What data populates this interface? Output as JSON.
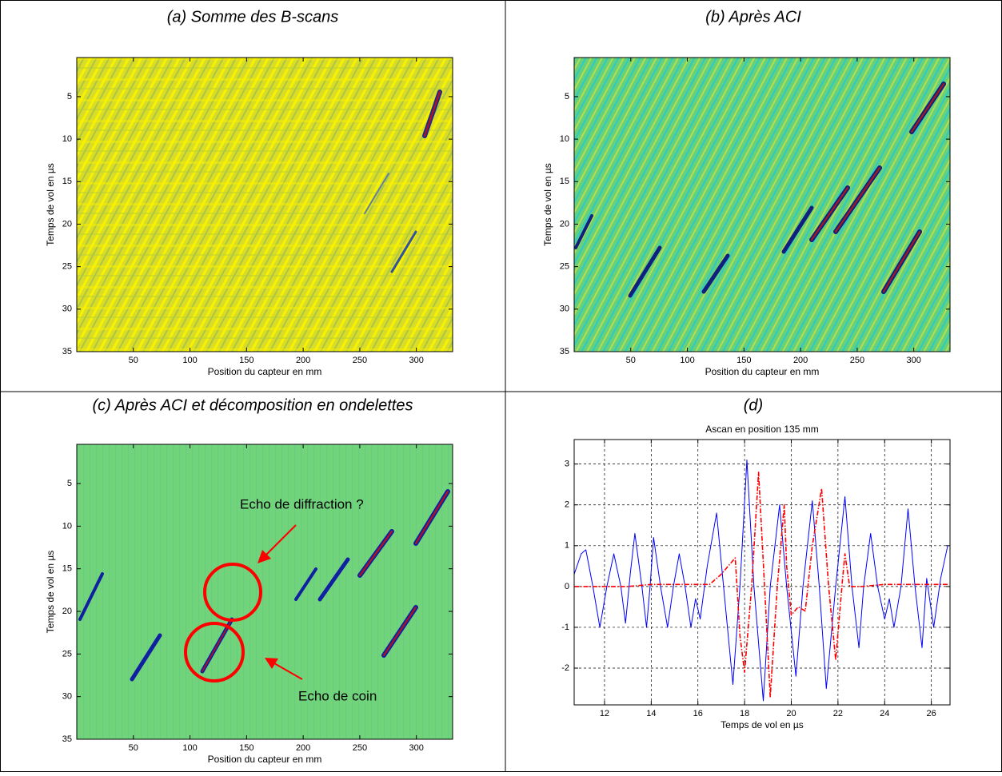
{
  "chart_data": [
    {
      "type": "image",
      "caption": "(a) Somme des B-scans",
      "xlabel": "Position du capteur en mm",
      "ylabel": "Temps de vol en µs",
      "xlim": [
        0,
        332
      ],
      "ylim": [
        0.4,
        35
      ],
      "y_reversed": true,
      "xticks": [
        50,
        100,
        150,
        200,
        250,
        300
      ],
      "yticks": [
        5,
        10,
        15,
        20,
        25,
        30,
        35
      ]
    },
    {
      "type": "image",
      "caption": "(b) Après ACI",
      "xlabel": "Position du capteur en mm",
      "ylabel": "Temps de vol en µs",
      "xlim": [
        0,
        332
      ],
      "ylim": [
        0.4,
        35
      ],
      "y_reversed": true,
      "xticks": [
        50,
        100,
        150,
        200,
        250,
        300
      ],
      "yticks": [
        5,
        10,
        15,
        20,
        25,
        30,
        35
      ]
    },
    {
      "type": "image",
      "caption": "(c) Après ACI et décomposition en ondelettes",
      "xlabel": "Position du capteur en mm",
      "ylabel": "Temps de vol en µs",
      "xlim": [
        0,
        332
      ],
      "ylim": [
        0.4,
        35
      ],
      "y_reversed": true,
      "xticks": [
        50,
        100,
        150,
        200,
        250,
        300
      ],
      "yticks": [
        5,
        10,
        15,
        20,
        25,
        30,
        35
      ],
      "annotations": [
        "Echo de diffraction ?",
        "Echo de coin"
      ]
    },
    {
      "type": "line",
      "caption": "(d)",
      "title": "Ascan en position 135 mm",
      "xlabel": "Temps de vol en µs",
      "xlim": [
        10.7,
        26.8
      ],
      "ylim": [
        -2.9,
        3.6
      ],
      "xticks": [
        12,
        14,
        16,
        18,
        20,
        22,
        24,
        26
      ],
      "yticks": [
        -2,
        -1,
        0,
        1,
        2,
        3
      ],
      "grid": true,
      "series": [
        {
          "color": "#0000ff",
          "dash": "solid",
          "x": [
            10.7,
            11.0,
            11.2,
            11.5,
            11.8,
            12.1,
            12.4,
            12.7,
            12.9,
            13.1,
            13.3,
            13.6,
            13.8,
            13.95,
            14.1,
            14.4,
            14.7,
            14.95,
            15.2,
            15.45,
            15.7,
            15.9,
            16.1,
            16.4,
            16.8,
            17.1,
            17.5,
            17.8,
            18.1,
            18.4,
            18.8,
            19.1,
            19.5,
            19.8,
            20.2,
            20.5,
            20.9,
            21.2,
            21.5,
            21.9,
            22.3,
            22.6,
            22.9,
            23.1,
            23.4,
            23.7,
            24.0,
            24.2,
            24.4,
            24.7,
            25.0,
            25.3,
            25.6,
            25.8,
            26.1,
            26.4,
            26.7
          ],
          "values": [
            0.3,
            0.8,
            0.9,
            0.0,
            -1.0,
            0.0,
            0.8,
            0.0,
            -0.9,
            0.3,
            1.3,
            0.0,
            -1.0,
            0.0,
            1.2,
            0.0,
            -1.0,
            0.0,
            0.8,
            0.0,
            -1.0,
            -0.3,
            -0.8,
            0.5,
            1.8,
            0.0,
            -2.4,
            0.0,
            3.1,
            0.0,
            -2.8,
            0.0,
            2.0,
            0.0,
            -2.2,
            0.0,
            2.1,
            0.0,
            -2.5,
            0.0,
            2.2,
            0.0,
            -1.5,
            0.0,
            1.3,
            0.0,
            -0.8,
            -0.3,
            -1.0,
            0.0,
            1.9,
            0.0,
            -1.5,
            0.2,
            -1.0,
            0.2,
            1.0
          ]
        },
        {
          "color": "#ff0000",
          "dash": "dashdot",
          "x": [
            10.7,
            12.0,
            13.0,
            14.0,
            15.0,
            16.0,
            16.5,
            17.0,
            17.6,
            17.8,
            18.0,
            18.3,
            18.6,
            18.9,
            19.1,
            19.4,
            19.7,
            19.8,
            20.0,
            20.3,
            20.6,
            20.9,
            21.3,
            21.6,
            21.9,
            22.2,
            22.3,
            22.5,
            23.0,
            24.0,
            25.0,
            26.0,
            26.7
          ],
          "values": [
            0.0,
            0.0,
            0.0,
            0.05,
            0.05,
            0.05,
            0.05,
            0.3,
            0.7,
            -1.2,
            -2.1,
            0.0,
            2.8,
            -0.5,
            -2.7,
            0.0,
            2.0,
            0.5,
            -0.7,
            -0.5,
            -0.6,
            1.0,
            2.4,
            0.0,
            -1.8,
            0.2,
            0.8,
            0.0,
            0.0,
            0.05,
            0.05,
            0.05,
            0.05
          ]
        }
      ]
    }
  ]
}
